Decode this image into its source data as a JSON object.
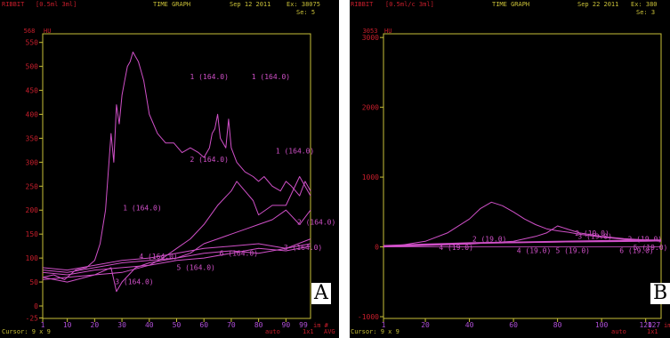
{
  "colors": {
    "frame": "#c9c038",
    "series": "#d050c8",
    "tick_y": "#c81e2c",
    "tick_x": "#b050d8",
    "header_red": "#c81e2c",
    "header_yellow": "#c9c038"
  },
  "panels": [
    {
      "id": "A",
      "header": {
        "source": "RIBBIT",
        "dose": "[0.5ml 3ml]",
        "mode": "TIME GRAPH",
        "date": "Sep 12 2011",
        "ex": "Ex: 38075",
        "se": "Se: 5"
      },
      "footer": {
        "cursor": "Cursor: 9 x 9",
        "auto": "auto",
        "scale": "1x1",
        "avg": "AVG"
      },
      "letter": "A"
    },
    {
      "id": "B",
      "header": {
        "source": "RIBBIT",
        "dose": "[0.5ml/c 3ml]",
        "mode": "TIME GRAPH",
        "date": "Sep 22 2011",
        "ex": "Ex: 380",
        "se": "Se: 3"
      },
      "footer": {
        "cursor": "Cursor: 9 x 9",
        "auto": "auto",
        "scale": "1x1"
      },
      "letter": "B"
    }
  ],
  "chart_data": [
    {
      "type": "line",
      "ylabel": "HU",
      "xlabel": "im #",
      "ylim": [
        -26,
        568
      ],
      "xlim": [
        1,
        99
      ],
      "y_ticks": [
        -25,
        0,
        50,
        100,
        150,
        200,
        250,
        300,
        350,
        400,
        450,
        500,
        550
      ],
      "y_top_label": "568",
      "x_ticks": [
        1,
        10,
        20,
        30,
        40,
        50,
        60,
        70,
        80,
        90
      ],
      "x_end_label": "99",
      "series": [
        {
          "label": "1 (164.0)",
          "x": [
            1,
            5,
            9,
            13,
            17,
            20,
            22,
            24,
            26,
            27,
            28,
            29,
            30,
            31,
            32,
            33,
            34,
            35,
            36,
            37,
            38,
            40,
            43,
            46,
            49,
            52,
            55,
            58,
            60,
            62,
            63,
            64,
            65,
            66,
            68,
            69,
            70,
            72,
            75,
            78,
            80,
            82,
            85,
            88,
            90,
            92,
            95,
            97,
            99
          ],
          "y": [
            60,
            65,
            55,
            75,
            80,
            95,
            130,
            200,
            360,
            300,
            420,
            380,
            440,
            470,
            500,
            510,
            530,
            520,
            510,
            490,
            470,
            400,
            360,
            340,
            340,
            320,
            330,
            320,
            310,
            330,
            360,
            370,
            400,
            350,
            330,
            390,
            330,
            300,
            280,
            270,
            260,
            270,
            250,
            240,
            260,
            250,
            230,
            260,
            240
          ]
        },
        {
          "label": "2 (164.0)",
          "x": [
            1,
            10,
            20,
            30,
            40,
            45,
            50,
            55,
            60,
            65,
            70,
            72,
            75,
            78,
            80,
            85,
            90,
            95,
            99
          ],
          "y": [
            55,
            60,
            65,
            70,
            85,
            100,
            120,
            140,
            170,
            210,
            240,
            260,
            240,
            220,
            190,
            210,
            210,
            270,
            230
          ]
        },
        {
          "label": "3 (164.0)",
          "x": [
            1,
            10,
            20,
            26,
            28,
            30,
            35,
            40,
            45,
            50,
            55,
            60,
            65,
            70,
            75,
            80,
            85,
            90,
            95,
            99
          ],
          "y": [
            60,
            50,
            65,
            80,
            30,
            50,
            80,
            90,
            95,
            100,
            110,
            130,
            140,
            150,
            160,
            170,
            180,
            200,
            170,
            200
          ]
        },
        {
          "label": "4 (164.0)",
          "x": [
            1,
            10,
            20,
            30,
            40,
            50,
            60,
            70,
            80,
            90,
            99
          ],
          "y": [
            70,
            65,
            75,
            80,
            85,
            95,
            100,
            110,
            120,
            115,
            125
          ]
        },
        {
          "label": "5 (164.0)",
          "x": [
            1,
            10,
            20,
            30,
            40,
            50,
            60,
            70,
            80,
            90,
            99
          ],
          "y": [
            75,
            70,
            80,
            90,
            95,
            100,
            110,
            115,
            110,
            120,
            130
          ]
        },
        {
          "label": "6 (164.0)",
          "x": [
            1,
            10,
            20,
            30,
            40,
            50,
            60,
            70,
            80,
            90,
            99
          ],
          "y": [
            80,
            75,
            85,
            95,
            100,
            110,
            120,
            125,
            130,
            120,
            140
          ]
        }
      ]
    },
    {
      "type": "line",
      "ylabel": "HU",
      "xlabel": "im",
      "ylim": [
        -1025,
        3053
      ],
      "xlim": [
        1,
        127
      ],
      "y_ticks": [
        -1000,
        0,
        1000,
        2000,
        3000
      ],
      "y_top_label": "3053",
      "x_ticks": [
        1,
        20,
        40,
        60,
        80,
        100,
        120
      ],
      "x_end_label": "127",
      "series": [
        {
          "label": "2 (19.0)",
          "x": [
            1,
            10,
            20,
            30,
            40,
            45,
            50,
            55,
            60,
            65,
            70,
            75,
            80,
            85,
            90,
            95,
            100,
            110,
            120,
            127
          ],
          "y": [
            0,
            30,
            80,
            200,
            400,
            550,
            640,
            590,
            500,
            400,
            320,
            260,
            230,
            210,
            180,
            160,
            140,
            110,
            90,
            80
          ]
        },
        {
          "label": "3 (19.0)",
          "x": [
            1,
            20,
            40,
            60,
            70,
            75,
            78,
            80,
            85,
            90,
            100,
            110,
            120,
            127
          ],
          "y": [
            0,
            20,
            40,
            80,
            150,
            200,
            260,
            300,
            250,
            200,
            150,
            120,
            100,
            90
          ]
        },
        {
          "label": "4 (19.0)",
          "x": [
            1,
            20,
            40,
            60,
            80,
            100,
            120,
            127
          ],
          "y": [
            0,
            30,
            50,
            60,
            70,
            80,
            90,
            90
          ]
        },
        {
          "label": "5 (19.0)",
          "x": [
            1,
            20,
            40,
            60,
            80,
            100,
            120,
            127
          ],
          "y": [
            20,
            40,
            60,
            70,
            80,
            90,
            100,
            100
          ]
        },
        {
          "label": "6 (19.0)",
          "x": [
            1,
            20,
            40,
            60,
            80,
            100,
            120,
            127
          ],
          "y": [
            10,
            30,
            50,
            60,
            70,
            75,
            80,
            85
          ]
        }
      ]
    }
  ]
}
